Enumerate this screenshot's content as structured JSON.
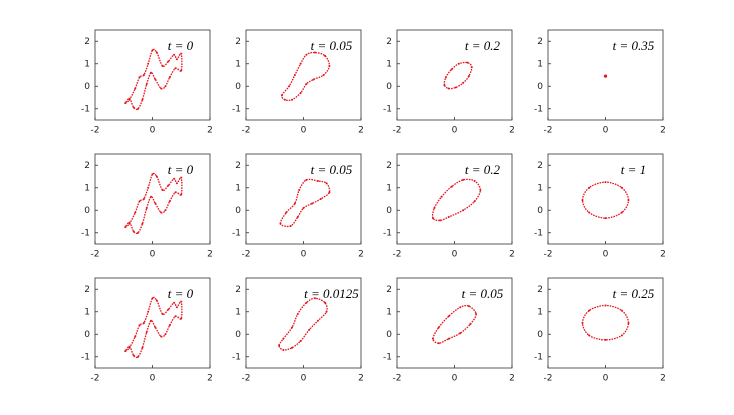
{
  "chart_data": [
    {
      "type": "scatter",
      "title": "t = 0",
      "color": "#e8141c",
      "xlim": [
        -2,
        2
      ],
      "ylim": [
        -1.5,
        2.5
      ],
      "xticks": [
        -2,
        0,
        2
      ],
      "yticks": [
        -1,
        0,
        1,
        2
      ],
      "x": [
        -0.95,
        -0.8,
        -0.6,
        -0.45,
        -0.3,
        -0.15,
        0,
        0.15,
        0.35,
        0.55,
        0.75,
        0.85,
        1.0,
        1.0,
        0.8,
        0.6,
        0.45,
        0.3,
        0.1,
        -0.05,
        -0.2,
        -0.35,
        -0.5,
        -0.65,
        -0.8
      ],
      "y": [
        -0.75,
        -0.6,
        -0.1,
        0.4,
        0.5,
        1.0,
        1.6,
        1.5,
        0.9,
        1.1,
        1.4,
        1.2,
        1.45,
        0.7,
        0.8,
        0.4,
        0.0,
        -0.1,
        0.3,
        0.6,
        0.1,
        -0.6,
        -1.0,
        -0.95,
        -0.55
      ]
    },
    {
      "type": "scatter",
      "title": "t = 0.05",
      "color": "#e8141c",
      "xlim": [
        -2,
        2
      ],
      "ylim": [
        -1.5,
        2.5
      ],
      "xticks": [
        -2,
        0,
        2
      ],
      "yticks": [
        -1,
        0,
        1,
        2
      ],
      "x": [
        -0.75,
        -0.5,
        -0.3,
        -0.1,
        0.1,
        0.4,
        0.75,
        0.9,
        0.7,
        0.35,
        0.1,
        -0.1,
        -0.4,
        -0.65
      ],
      "y": [
        -0.4,
        0.0,
        0.5,
        1.0,
        1.4,
        1.5,
        1.35,
        0.9,
        0.5,
        0.3,
        0.1,
        -0.3,
        -0.6,
        -0.6
      ]
    },
    {
      "type": "scatter",
      "title": "t = 0.2",
      "color": "#e8141c",
      "xlim": [
        -2,
        2
      ],
      "ylim": [
        -1.5,
        2.5
      ],
      "xticks": [
        -2,
        0,
        2
      ],
      "yticks": [
        -1,
        0,
        1,
        2
      ],
      "x": [
        -0.35,
        -0.3,
        -0.1,
        0.15,
        0.45,
        0.6,
        0.5,
        0.3,
        0.05,
        -0.2
      ],
      "y": [
        0.05,
        0.4,
        0.75,
        1.0,
        1.05,
        0.85,
        0.45,
        0.15,
        -0.05,
        -0.1
      ]
    },
    {
      "type": "scatter",
      "title": "t = 0.35",
      "color": "#e8141c",
      "xlim": [
        -2,
        2
      ],
      "ylim": [
        -1.5,
        2.5
      ],
      "xticks": [
        -2,
        0,
        2
      ],
      "yticks": [
        -1,
        0,
        1,
        2
      ],
      "x": [
        0
      ],
      "y": [
        0.45
      ]
    },
    {
      "type": "scatter",
      "title": "t = 0",
      "color": "#e8141c",
      "xlim": [
        -2,
        2
      ],
      "ylim": [
        -1.5,
        2.5
      ],
      "xticks": [
        -2,
        0,
        2
      ],
      "yticks": [
        -1,
        0,
        1,
        2
      ],
      "x": [
        -0.95,
        -0.8,
        -0.6,
        -0.45,
        -0.3,
        -0.15,
        0,
        0.15,
        0.35,
        0.55,
        0.75,
        0.85,
        1.0,
        1.0,
        0.8,
        0.6,
        0.45,
        0.3,
        0.1,
        -0.05,
        -0.2,
        -0.35,
        -0.5,
        -0.65,
        -0.8
      ],
      "y": [
        -0.75,
        -0.6,
        -0.1,
        0.4,
        0.5,
        1.0,
        1.6,
        1.5,
        0.9,
        1.1,
        1.4,
        1.2,
        1.45,
        0.7,
        0.8,
        0.4,
        0.0,
        -0.1,
        0.3,
        0.6,
        0.1,
        -0.6,
        -1.0,
        -0.95,
        -0.55
      ]
    },
    {
      "type": "scatter",
      "title": "t = 0.05",
      "color": "#e8141c",
      "xlim": [
        -2,
        2
      ],
      "ylim": [
        -1.5,
        2.5
      ],
      "xticks": [
        -2,
        0,
        2
      ],
      "yticks": [
        -1,
        0,
        1,
        2
      ],
      "x": [
        -0.8,
        -0.6,
        -0.3,
        -0.15,
        0.1,
        0.5,
        0.8,
        0.9,
        0.6,
        0.3,
        0.0,
        -0.2,
        -0.45
      ],
      "y": [
        -0.6,
        -0.1,
        0.3,
        0.9,
        1.35,
        1.3,
        1.2,
        0.8,
        0.5,
        0.3,
        0.1,
        -0.3,
        -0.7
      ]
    },
    {
      "type": "scatter",
      "title": "t = 0.2",
      "color": "#e8141c",
      "xlim": [
        -2,
        2
      ],
      "ylim": [
        -1.5,
        2.5
      ],
      "xticks": [
        -2,
        0,
        2
      ],
      "yticks": [
        -1,
        0,
        1,
        2
      ],
      "x": [
        -0.75,
        -0.7,
        -0.45,
        -0.1,
        0.3,
        0.7,
        0.9,
        0.7,
        0.3,
        -0.2,
        -0.5
      ],
      "y": [
        -0.35,
        0.1,
        0.6,
        1.05,
        1.35,
        1.3,
        0.9,
        0.4,
        0.0,
        -0.3,
        -0.45
      ]
    },
    {
      "type": "scatter",
      "title": "t = 1",
      "color": "#e8141c",
      "xlim": [
        -2,
        2
      ],
      "ylim": [
        -1.5,
        2.5
      ],
      "xticks": [
        -2,
        0,
        2
      ],
      "yticks": [
        -1,
        0,
        1,
        2
      ],
      "x": [
        0.8,
        0.57,
        0,
        -0.57,
        -0.8,
        -0.57,
        0,
        0.57
      ],
      "y": [
        0.45,
        1.0,
        1.25,
        1.0,
        0.45,
        -0.1,
        -0.35,
        -0.1
      ]
    },
    {
      "type": "scatter",
      "title": "t = 0",
      "color": "#e8141c",
      "xlim": [
        -2,
        2
      ],
      "ylim": [
        -1.5,
        2.5
      ],
      "xticks": [
        -2,
        0,
        2
      ],
      "yticks": [
        -1,
        0,
        1,
        2
      ],
      "x": [
        -0.95,
        -0.8,
        -0.6,
        -0.45,
        -0.3,
        -0.15,
        0,
        0.15,
        0.35,
        0.55,
        0.75,
        0.85,
        1.0,
        1.0,
        0.8,
        0.6,
        0.45,
        0.3,
        0.1,
        -0.05,
        -0.2,
        -0.35,
        -0.5,
        -0.65,
        -0.8
      ],
      "y": [
        -0.75,
        -0.6,
        -0.1,
        0.4,
        0.5,
        1.0,
        1.6,
        1.5,
        0.9,
        1.1,
        1.4,
        1.2,
        1.45,
        0.7,
        0.8,
        0.4,
        0.0,
        -0.1,
        0.3,
        0.6,
        0.1,
        -0.6,
        -1.0,
        -0.95,
        -0.55
      ]
    },
    {
      "type": "scatter",
      "title": "t = 0.0125",
      "color": "#e8141c",
      "xlim": [
        -2,
        2
      ],
      "ylim": [
        -1.5,
        2.5
      ],
      "xticks": [
        -2,
        0,
        2
      ],
      "yticks": [
        -1,
        0,
        1,
        2
      ],
      "x": [
        -0.85,
        -0.7,
        -0.4,
        -0.2,
        0.1,
        0.4,
        0.75,
        0.8,
        0.5,
        0.2,
        -0.1,
        -0.4,
        -0.7
      ],
      "y": [
        -0.5,
        -0.2,
        0.3,
        0.9,
        1.4,
        1.6,
        1.4,
        1.0,
        0.6,
        0.2,
        -0.3,
        -0.6,
        -0.7
      ]
    },
    {
      "type": "scatter",
      "title": "t = 0.05",
      "color": "#e8141c",
      "xlim": [
        -2,
        2
      ],
      "ylim": [
        -1.5,
        2.5
      ],
      "xticks": [
        -2,
        0,
        2
      ],
      "yticks": [
        -1,
        0,
        1,
        2
      ],
      "x": [
        -0.75,
        -0.55,
        -0.2,
        0.2,
        0.5,
        0.75,
        0.55,
        0.2,
        -0.2,
        -0.55
      ],
      "y": [
        -0.2,
        0.3,
        0.8,
        1.2,
        1.25,
        0.9,
        0.45,
        0.05,
        -0.2,
        -0.4
      ]
    },
    {
      "type": "scatter",
      "title": "t = 0.25",
      "color": "#e8141c",
      "xlim": [
        -2,
        2
      ],
      "ylim": [
        -1.5,
        2.5
      ],
      "xticks": [
        -2,
        0,
        2
      ],
      "yticks": [
        -1,
        0,
        1,
        2
      ],
      "x": [
        0.8,
        0.57,
        0,
        -0.57,
        -0.8,
        -0.57,
        0,
        0.57
      ],
      "y": [
        0.5,
        1.05,
        1.28,
        1.05,
        0.5,
        -0.05,
        -0.25,
        -0.05
      ]
    }
  ]
}
